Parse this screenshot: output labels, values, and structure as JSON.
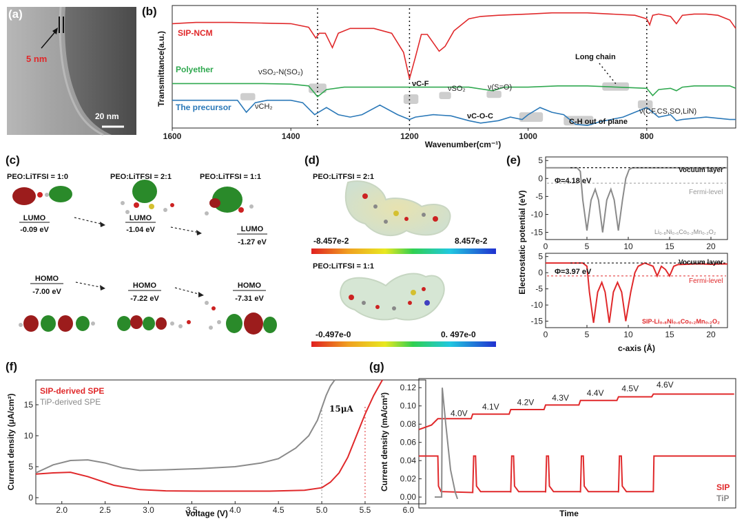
{
  "colors": {
    "red": "#e0282a",
    "green": "#2fa84f",
    "blue": "#2a78b8",
    "gray": "#8a8a8a",
    "shade": "#b9b9b9"
  },
  "panels": {
    "a": "(a)",
    "b": "(b)",
    "c": "(c)",
    "d": "(d)",
    "e": "(e)",
    "f": "(f)",
    "g": "(g)"
  },
  "panel_a": {
    "scale_label": "5 nm",
    "bar_label": "20 nm"
  },
  "panel_c": {
    "headers": [
      "PEO:LiTFSI = 1:0",
      "PEO:LiTFSI = 2:1",
      "PEO:LiTFSI = 1:1"
    ],
    "lumo": [
      {
        "label": "LUMO",
        "value": "-0.09 eV"
      },
      {
        "label": "LUMO",
        "value": "-1.04 eV"
      },
      {
        "label": "LUMO",
        "value": "-1.27 eV"
      }
    ],
    "homo": [
      {
        "label": "HOMO",
        "value": "-7.00 eV"
      },
      {
        "label": "HOMO",
        "value": "-7.22 eV"
      },
      {
        "label": "HOMO",
        "value": "-7.31 eV"
      }
    ]
  },
  "panel_d": {
    "maps": [
      {
        "title": "PEO:LiTFSI = 2:1",
        "min": "-8.457e-2",
        "max": "8.457e-2"
      },
      {
        "title": "PEO:LiTFSI = 1:1",
        "min": "-0.497e-0",
        "max": "0. 497e-0"
      }
    ]
  },
  "chart_data": [
    {
      "panel": "b",
      "type": "line",
      "xlabel": "Wavenumber(cm⁻¹)",
      "ylabel": "Transmittance(a.u.)",
      "xlim": [
        1600,
        650
      ],
      "x_ticks": [
        1600,
        1400,
        1200,
        1000,
        800
      ],
      "x_reversed": true,
      "series": [
        {
          "name": "SIP-NCM",
          "color": "#e0282a",
          "x": [
            1600,
            1560,
            1500,
            1450,
            1400,
            1370,
            1358,
            1352,
            1342,
            1330,
            1320,
            1300,
            1260,
            1230,
            1210,
            1200,
            1190,
            1180,
            1170,
            1160,
            1150,
            1140,
            1125,
            1100,
            1080,
            1050,
            1000,
            960,
            900,
            860,
            820,
            800,
            795,
            790,
            780,
            760,
            750,
            740,
            720,
            700,
            680,
            660,
            650
          ],
          "y": [
            0.86,
            0.87,
            0.87,
            0.865,
            0.86,
            0.83,
            0.74,
            0.78,
            0.78,
            0.66,
            0.78,
            0.82,
            0.82,
            0.78,
            0.62,
            0.4,
            0.58,
            0.77,
            0.77,
            0.7,
            0.63,
            0.67,
            0.8,
            0.9,
            0.92,
            0.93,
            0.94,
            0.95,
            0.95,
            0.94,
            0.93,
            0.9,
            0.85,
            0.93,
            0.94,
            0.92,
            0.86,
            0.93,
            0.94,
            0.94,
            0.93,
            0.89,
            0.82
          ]
        },
        {
          "name": "Polyether",
          "color": "#2fa84f",
          "x": [
            1600,
            1500,
            1450,
            1400,
            1370,
            1355,
            1340,
            1310,
            1280,
            1250,
            1220,
            1200,
            1180,
            1150,
            1100,
            1060,
            1040,
            1000,
            950,
            900,
            850,
            800,
            790,
            780,
            760,
            750,
            740,
            720,
            700,
            680,
            660,
            650
          ],
          "y": [
            0.36,
            0.36,
            0.36,
            0.355,
            0.34,
            0.25,
            0.31,
            0.33,
            0.33,
            0.33,
            0.33,
            0.33,
            0.33,
            0.33,
            0.33,
            0.3,
            0.33,
            0.33,
            0.34,
            0.34,
            0.33,
            0.32,
            0.26,
            0.31,
            0.32,
            0.3,
            0.33,
            0.34,
            0.34,
            0.34,
            0.34,
            0.32
          ]
        },
        {
          "name": "The precursor",
          "color": "#2a78b8",
          "x": [
            1600,
            1560,
            1520,
            1490,
            1475,
            1460,
            1440,
            1400,
            1380,
            1360,
            1340,
            1320,
            1300,
            1280,
            1250,
            1220,
            1200,
            1190,
            1160,
            1130,
            1100,
            1080,
            1050,
            1030,
            1010,
            1000,
            980,
            960,
            940,
            920,
            900,
            880,
            860,
            840,
            820,
            800,
            790,
            780,
            760,
            750,
            740,
            720,
            700,
            680,
            660,
            650
          ],
          "y": [
            0.22,
            0.22,
            0.22,
            0.22,
            0.12,
            0.2,
            0.22,
            0.22,
            0.2,
            0.1,
            0.16,
            0.1,
            0.08,
            0.1,
            0.18,
            0.1,
            0.06,
            0.08,
            0.1,
            0.09,
            0.05,
            0.03,
            0.05,
            0.08,
            0.06,
            0.1,
            0.16,
            0.12,
            0.1,
            0.02,
            0.01,
            0.04,
            0.06,
            0.08,
            0.12,
            0.16,
            0.12,
            0.08,
            0.1,
            0.05,
            0.06,
            0.07,
            0.08,
            0.07,
            0.06,
            0.06
          ]
        }
      ],
      "annotations": [
        "νSO₂-N(SO₂)",
        "νC-F",
        "νSO₂",
        "ν(S=O)",
        "νCH₂",
        "νC-O-C",
        "C-H out of plane",
        "Long chain",
        "ν(CF,CS,SO,LiN)"
      ],
      "dotted_lines_at": [
        1355,
        1200,
        800
      ]
    },
    {
      "panel": "e",
      "type": "line",
      "ylabel": "Electrostatic potential (eV)",
      "xlabel": "c-axis (Å)",
      "subplots": [
        {
          "name": "Li0.8Ni0.6Co0.2Mn0.2O2",
          "display_name": "Li₀.₈Ni₀.₆Co₀.₂Mn₀.₂O₂",
          "color": "#8a8a8a",
          "xlim": [
            0,
            22
          ],
          "ylim": [
            -17,
            6
          ],
          "x_ticks": [
            0,
            5,
            10,
            15,
            20
          ],
          "y_ticks": [
            5,
            0,
            -5,
            -10,
            -15
          ],
          "vacuum_level": 3.0,
          "fermi_level": -1.3,
          "phi": "Φ=4.18 eV",
          "vacuum_label": "Vocuum layer",
          "fermi_label": "Fermi-level",
          "x": [
            0,
            3.8,
            4.2,
            4.5,
            5.0,
            5.5,
            6.0,
            6.4,
            6.9,
            7.4,
            7.9,
            8.3,
            8.8,
            9.3,
            9.7,
            10.1,
            10.5,
            11,
            22
          ],
          "y": [
            3,
            3,
            2,
            -6,
            -14.5,
            -6,
            -3,
            -6,
            -15,
            -6,
            -3,
            -6,
            -14.5,
            -6,
            0,
            2.5,
            3,
            3,
            3
          ]
        },
        {
          "name": "SIP-Li0.8Ni0.6Co0.2Mn0.2O2",
          "display_name": "SIP-Li₀.₈Ni₀.₆Co₀.₂Mn₀.₂O₂",
          "color": "#e0282a",
          "xlim": [
            0,
            22
          ],
          "ylim": [
            -17,
            6
          ],
          "x_ticks": [
            0,
            5,
            10,
            15,
            20
          ],
          "y_ticks": [
            5,
            0,
            -5,
            -10,
            -15
          ],
          "vacuum_level": 3.0,
          "fermi_level": -1.0,
          "phi": "Φ=3.97 eV",
          "vacuum_label": "Vocuum layer",
          "fermi_label": "Fermi-level",
          "x": [
            0,
            4.5,
            5.0,
            5.3,
            5.8,
            6.3,
            6.8,
            7.2,
            7.7,
            8.2,
            8.7,
            9.2,
            9.7,
            10.3,
            10.8,
            11.2,
            12,
            13,
            13.5,
            14,
            14.5,
            15,
            15.5,
            16,
            17,
            18,
            19,
            20,
            21,
            22
          ],
          "y": [
            3,
            3,
            2,
            -6,
            -15.5,
            -6,
            -3,
            -6,
            -15.5,
            -6,
            -3,
            -6,
            -15,
            -6,
            0,
            2,
            3,
            2,
            -1,
            2,
            1,
            -1,
            2,
            2.5,
            2.6,
            2.7,
            2.7,
            2.6,
            2.7,
            2.7
          ]
        }
      ]
    },
    {
      "panel": "f",
      "type": "line",
      "xlabel": "Voltage (V)",
      "ylabel": "Current density (μA/cm²)",
      "xlim": [
        1.7,
        6.2
      ],
      "ylim": [
        -1,
        19
      ],
      "x_ticks": [
        2.0,
        2.5,
        3.0,
        3.5,
        4.0,
        4.5,
        5.0,
        5.5,
        6.0
      ],
      "y_ticks": [
        0,
        5,
        10,
        15
      ],
      "marker_lines": [
        {
          "x": 5.0,
          "color": "#8a8a8a"
        },
        {
          "x": 5.5,
          "color": "#e0282a"
        }
      ],
      "threshold_label": "15μA",
      "series": [
        {
          "name": "SIP-derived SPE",
          "color": "#e0282a",
          "x": [
            1.7,
            1.9,
            2.1,
            2.3,
            2.6,
            2.9,
            3.2,
            3.6,
            4.0,
            4.4,
            4.8,
            5.0,
            5.1,
            5.2,
            5.3,
            5.4,
            5.5,
            5.6,
            5.7
          ],
          "y": [
            3.8,
            4.0,
            4.1,
            3.4,
            2.0,
            1.3,
            1.1,
            1.05,
            1.05,
            1.05,
            1.2,
            1.6,
            2.5,
            4.0,
            6.5,
            10.0,
            13.5,
            16.5,
            19.0
          ]
        },
        {
          "name": "TiP-derived SPE",
          "color": "#8a8a8a",
          "x": [
            1.7,
            1.9,
            2.1,
            2.3,
            2.5,
            2.7,
            2.9,
            3.2,
            3.6,
            4.0,
            4.3,
            4.5,
            4.7,
            4.85,
            4.95,
            5.0,
            5.05,
            5.1,
            5.15
          ],
          "y": [
            4.0,
            5.3,
            6.0,
            6.1,
            5.6,
            4.8,
            4.4,
            4.5,
            4.7,
            5.0,
            5.6,
            6.3,
            8.0,
            10.0,
            12.5,
            14.5,
            16.5,
            18.0,
            19.0
          ]
        }
      ]
    },
    {
      "panel": "g",
      "type": "line",
      "xlabel": "Time",
      "ylabel": "Current density (mA/cm²)",
      "xlim": [
        0,
        100
      ],
      "ylim": [
        -0.012,
        0.13
      ],
      "y_ticks": [
        0.0,
        0.02,
        0.04,
        0.06,
        0.08,
        0.1,
        0.12
      ],
      "step_labels": [
        "4.0V",
        "4.1V",
        "4.2V",
        "4.3V",
        "4.4V",
        "4.5V",
        "4.6V"
      ],
      "series": [
        {
          "name": "SIP",
          "color": "#e0282a"
        },
        {
          "name": "TiP",
          "color": "#8a8a8a"
        }
      ]
    }
  ]
}
